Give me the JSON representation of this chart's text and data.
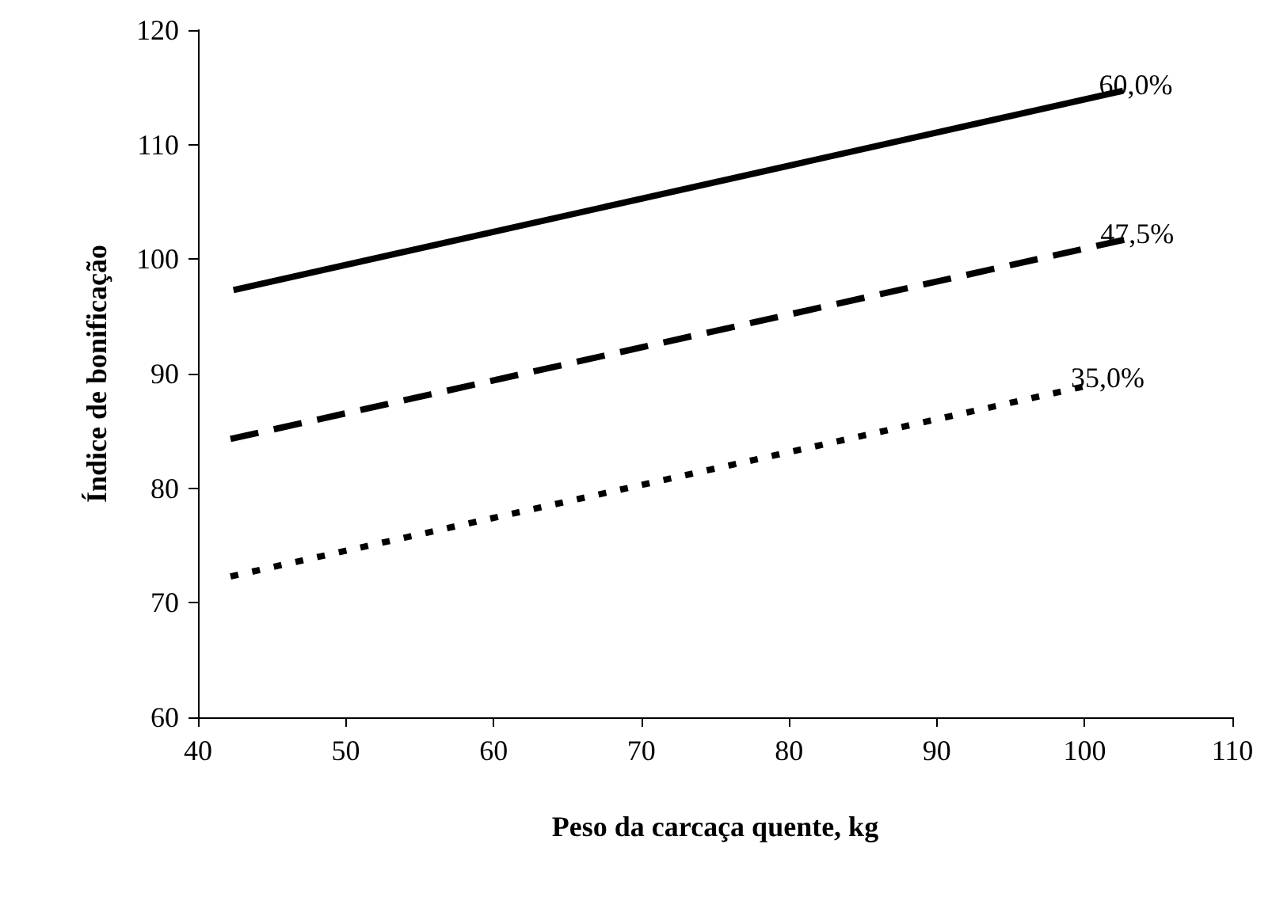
{
  "chart_data": {
    "type": "line",
    "xlabel": "Peso da carcaça quente, kg",
    "ylabel": "Índice de bonificação",
    "xlim": [
      40,
      110
    ],
    "xticks": [
      40,
      50,
      60,
      70,
      80,
      90,
      100,
      110
    ],
    "ylim": [
      60,
      120
    ],
    "yticks": [
      60,
      70,
      80,
      90,
      100,
      110,
      120
    ],
    "grid": false,
    "legend": false,
    "marker": "none",
    "series": [
      {
        "name": "60,0%",
        "color": "#000000",
        "line_style": "solid",
        "x": [
          42.4,
          102.6
        ],
        "values": [
          97.3,
          114.7
        ]
      },
      {
        "name": "47,5%",
        "color": "#000000",
        "line_style": "dashed",
        "x": [
          42.2,
          102.7
        ],
        "values": [
          84.3,
          101.7
        ]
      },
      {
        "name": "35,0%",
        "color": "#000000",
        "line_style": "dotted",
        "x": [
          42.2,
          100.7
        ],
        "values": [
          72.3,
          89.1
        ]
      }
    ]
  }
}
